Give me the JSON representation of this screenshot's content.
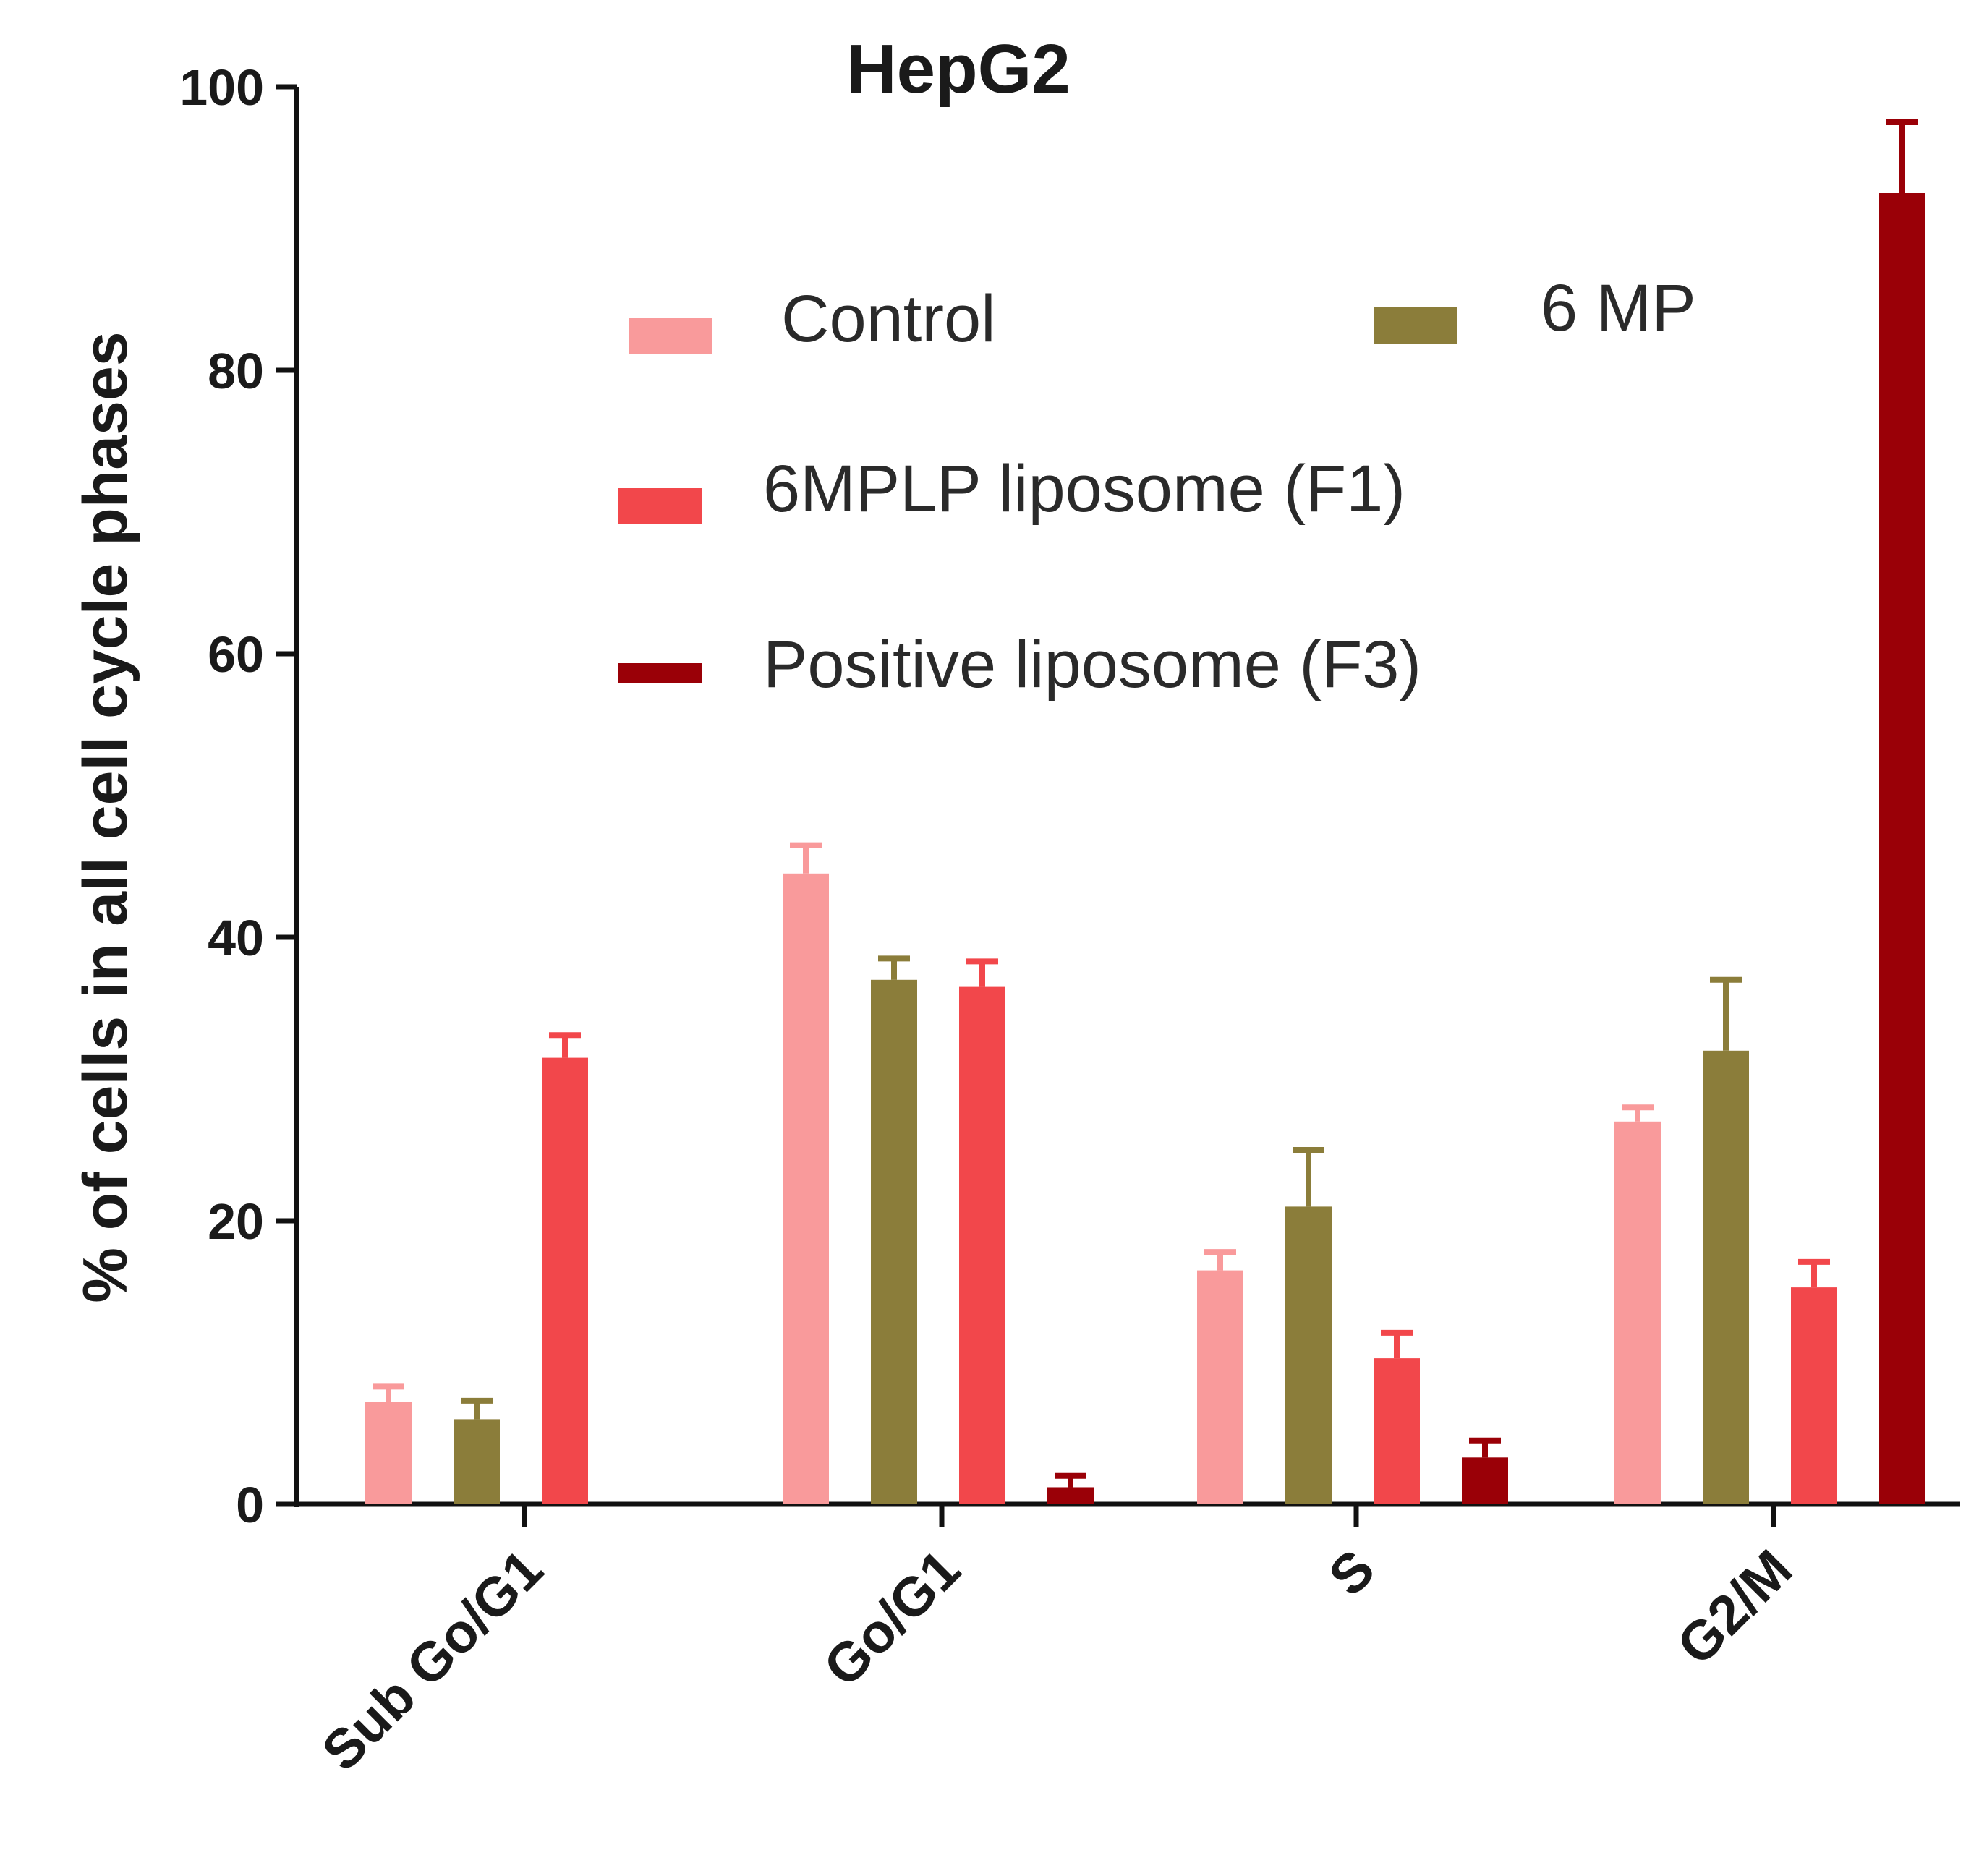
{
  "chart_data": {
    "type": "bar",
    "title": "HepG2",
    "ylabel": "% of cells in all cell cycle phases",
    "xlabel": "",
    "ylim": [
      0,
      100
    ],
    "yticks": [
      0,
      20,
      40,
      60,
      80,
      100
    ],
    "categories": [
      "Sub Go/G1",
      "Go/G1",
      "S",
      "G2/M"
    ],
    "series": [
      {
        "name": "Control",
        "color": "#f99a9b",
        "values": [
          7.2,
          44.5,
          16.5,
          27.0
        ],
        "errors": [
          1.1,
          2.0,
          1.3,
          1.0
        ]
      },
      {
        "name": "6 MP",
        "color": "#8b7d3a",
        "values": [
          6.0,
          37.0,
          21.0,
          32.0
        ],
        "errors": [
          1.3,
          1.5,
          4.0,
          5.0
        ]
      },
      {
        "name": "6MPLP liposome  (F1)",
        "color": "#f2474b",
        "values": [
          31.5,
          36.5,
          10.3,
          15.3
        ],
        "errors": [
          1.6,
          1.8,
          1.8,
          1.8
        ]
      },
      {
        "name": "Positive liposome  (F3)",
        "color": "#9a0007",
        "values": [
          0,
          1.2,
          3.3,
          92.5
        ],
        "errors": [
          0,
          0.8,
          1.2,
          5.0
        ]
      }
    ],
    "legend": "top-center, inside plot, 2 columns",
    "grid": false
  }
}
